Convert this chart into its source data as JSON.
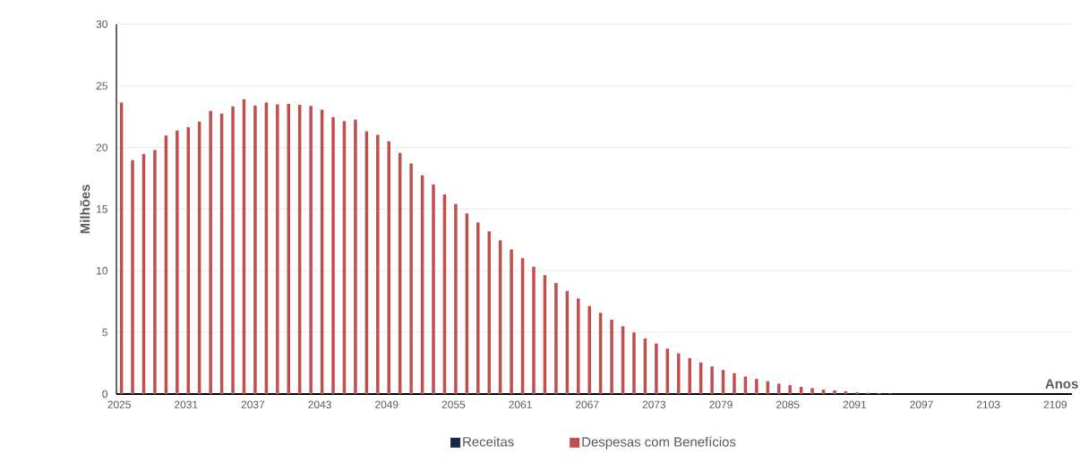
{
  "chart_data": {
    "type": "bar",
    "xlabel": "Anos",
    "ylabel": "Milhões",
    "categories": [
      "2025",
      null,
      null,
      null,
      null,
      null,
      "2031",
      null,
      null,
      null,
      null,
      null,
      "2037",
      null,
      null,
      null,
      null,
      null,
      "2043",
      null,
      null,
      null,
      null,
      null,
      "2049",
      null,
      null,
      null,
      null,
      null,
      "2055",
      null,
      null,
      null,
      null,
      null,
      "2061",
      null,
      null,
      null,
      null,
      null,
      "2067",
      null,
      null,
      null,
      null,
      null,
      "2073",
      null,
      null,
      null,
      null,
      null,
      "2079",
      null,
      null,
      null,
      null,
      null,
      "2085",
      null,
      null,
      null,
      null,
      null,
      "2091",
      null,
      null,
      null,
      null,
      null,
      "2097",
      null,
      null,
      null,
      null,
      null,
      "2103",
      null,
      null,
      null,
      null,
      null,
      "2109",
      null
    ],
    "series": [
      {
        "name": "Receitas",
        "color": "#17294a",
        "values": [
          0,
          0,
          0,
          0,
          0,
          0,
          0,
          0,
          0,
          0,
          0,
          0,
          0,
          0,
          0,
          0,
          0,
          0,
          0,
          0,
          0,
          0,
          0,
          0,
          0,
          0,
          0,
          0,
          0,
          0,
          0,
          0,
          0,
          0,
          0,
          0,
          0,
          0,
          0,
          0,
          0,
          0,
          0,
          0,
          0,
          0,
          0,
          0,
          0,
          0,
          0,
          0,
          0,
          0,
          0,
          0,
          0,
          0,
          0,
          0,
          0,
          0,
          0,
          0,
          0,
          0,
          0,
          0,
          0,
          0,
          0,
          0,
          0,
          0,
          0,
          0,
          0,
          0,
          0,
          0,
          0,
          0,
          0,
          0,
          0,
          0
        ]
      },
      {
        "name": "Despesas com Benefícios",
        "color": "#c0504d",
        "values": [
          23.65,
          18.97,
          19.47,
          19.79,
          20.97,
          21.38,
          21.65,
          22.1,
          22.97,
          22.76,
          23.33,
          23.91,
          23.41,
          23.65,
          23.5,
          23.53,
          23.46,
          23.38,
          23.07,
          22.47,
          22.13,
          22.27,
          21.31,
          21.02,
          20.51,
          19.55,
          18.7,
          17.74,
          16.99,
          16.19,
          15.42,
          14.65,
          13.92,
          13.2,
          12.48,
          11.73,
          11.03,
          10.33,
          9.65,
          9.0,
          8.37,
          7.75,
          7.14,
          6.59,
          6.03,
          5.5,
          5.0,
          4.51,
          4.1,
          3.69,
          3.31,
          2.92,
          2.56,
          2.24,
          1.95,
          1.69,
          1.42,
          1.23,
          1.04,
          0.84,
          0.72,
          0.58,
          0.48,
          0.36,
          0.29,
          0.22,
          0.14,
          0.1,
          0.07,
          0.05,
          0,
          0,
          0,
          0,
          0,
          0,
          0,
          0,
          0,
          0,
          0,
          0,
          0,
          0,
          0,
          0
        ]
      }
    ],
    "ylim": [
      0,
      30
    ],
    "yticks": [
      0,
      5,
      10,
      15,
      20,
      25,
      30
    ],
    "grid": "y",
    "legend": "bottom"
  }
}
